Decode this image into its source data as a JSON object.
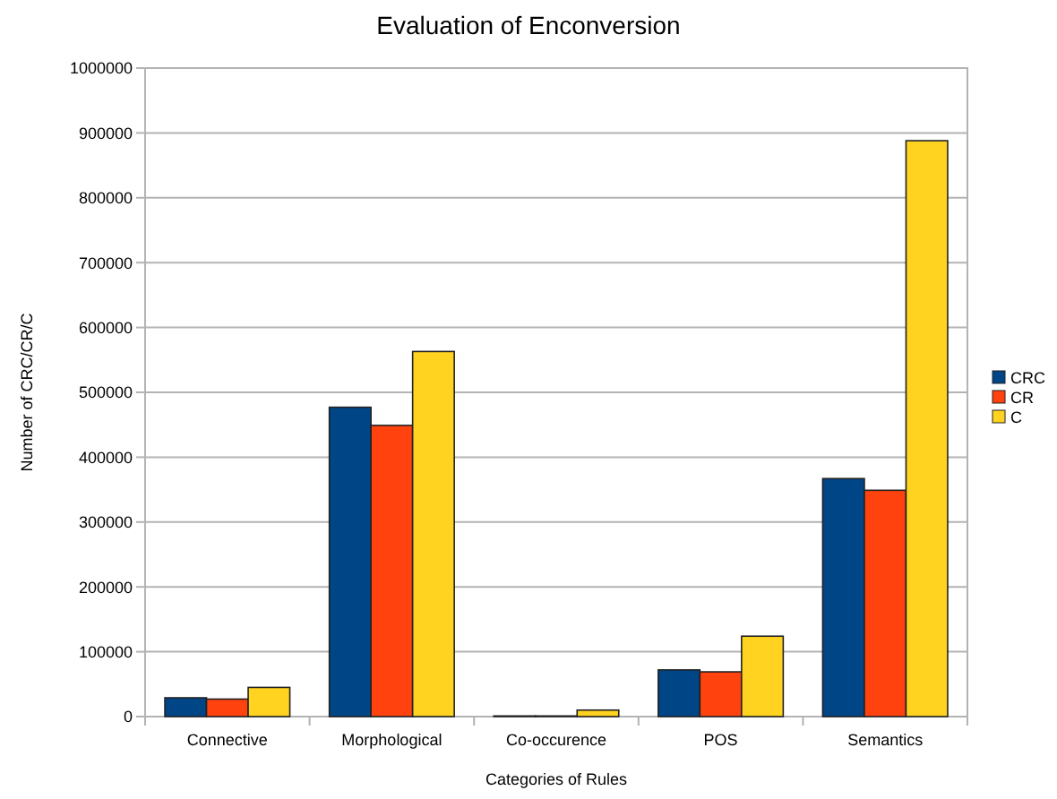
{
  "chart_data": {
    "type": "bar",
    "title": "Evaluation of Enconversion",
    "xlabel": "Categories of Rules",
    "ylabel": "Number of CRC/CR/C",
    "categories": [
      "Connective",
      "Morphological",
      "Co-occurence",
      "POS",
      "Semantics"
    ],
    "series": [
      {
        "name": "CRC",
        "color": "#004586",
        "values": [
          29000,
          477000,
          1000,
          72000,
          367000
        ]
      },
      {
        "name": "CR",
        "color": "#ff420e",
        "values": [
          27000,
          449000,
          1000,
          69000,
          349000
        ]
      },
      {
        "name": "C",
        "color": "#ffd320",
        "values": [
          45000,
          563000,
          10000,
          124000,
          888000
        ]
      }
    ],
    "ylim": [
      0,
      1000000
    ],
    "yticks": [
      0,
      100000,
      200000,
      300000,
      400000,
      500000,
      600000,
      700000,
      800000,
      900000,
      1000000
    ],
    "grid": "y",
    "legend": "right"
  }
}
